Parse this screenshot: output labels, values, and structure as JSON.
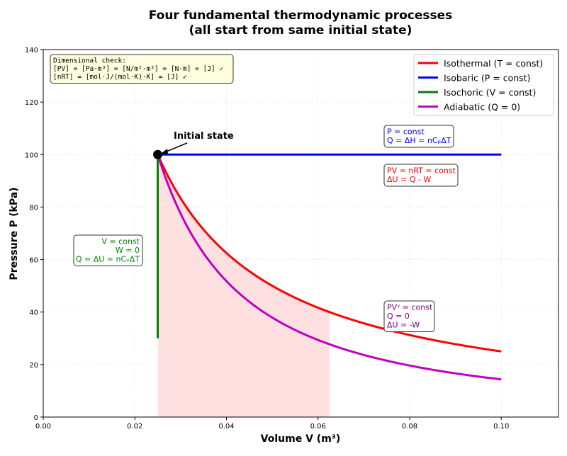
{
  "chart_data": {
    "type": "line",
    "title": "Four fundamental thermodynamic processes",
    "subtitle": "(all start from same initial state)",
    "xlabel": "Volume V (m³)",
    "ylabel": "Pressure P (kPa)",
    "xlim": [
      0,
      0.1125
    ],
    "ylim": [
      0,
      140
    ],
    "xticks": [
      "0.00",
      "0.02",
      "0.04",
      "0.06",
      "0.08",
      "0.10"
    ],
    "xtick_values": [
      0,
      0.02,
      0.04,
      0.06,
      0.08,
      0.1
    ],
    "yticks": [
      "0",
      "20",
      "40",
      "60",
      "80",
      "100",
      "120",
      "140"
    ],
    "ytick_values": [
      0,
      20,
      40,
      60,
      80,
      100,
      120,
      140
    ],
    "grid": true,
    "legend_position": "top-right",
    "series": [
      {
        "name": "Isothermal (T = const)",
        "color": "#ff0000",
        "kind": "isothermal",
        "V": [
          0.025,
          0.1
        ],
        "P0": 100
      },
      {
        "name": "Isobaric (P = const)",
        "color": "#0000ff",
        "kind": "line",
        "V": [
          0.025,
          0.1
        ],
        "P": [
          100,
          100
        ]
      },
      {
        "name": "Isochoric (V = const)",
        "color": "#007f00",
        "kind": "line",
        "V": [
          0.025,
          0.025
        ],
        "P": [
          100,
          30
        ]
      },
      {
        "name": "Adiabatic (Q = 0)",
        "color": "#bf00bf",
        "kind": "adiabatic",
        "V": [
          0.025,
          0.1
        ],
        "P0": 100,
        "gamma": 1.4
      }
    ],
    "shaded_region": {
      "under": "isothermal",
      "V": [
        0.025,
        0.0625
      ],
      "color": "#ffcccc"
    },
    "initial_point": {
      "V": 0.025,
      "P": 100,
      "label": "Initial state"
    },
    "annotations": {
      "dimensional": [
        "Dimensional check:",
        "[PV] = [Pa·m³] = [N/m²·m³] = [N·m] = [J] ✓",
        "[nRT] = [mol·J/(mol·K)·K] = [J] ✓"
      ],
      "isothermal": [
        "PV = nRT = const",
        "ΔU = Q - W"
      ],
      "isobaric": [
        "P = const",
        "Q = ΔH = nCₚΔT"
      ],
      "isochoric": [
        "V = const",
        "W = 0",
        "Q = ΔU = nCᵥΔT"
      ],
      "adiabatic": [
        "PVᵞ = const",
        "Q = 0",
        "ΔU = -W"
      ]
    }
  }
}
